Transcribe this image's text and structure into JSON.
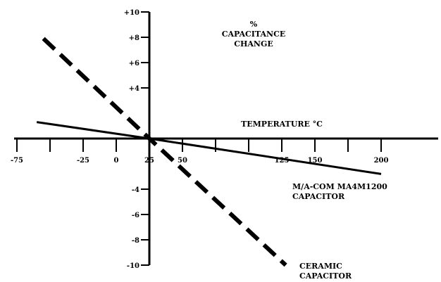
{
  "chart_data": {
    "type": "line",
    "xlabel": "TEMPERATURE °C",
    "ylabel_lines": [
      "%",
      "CAPACITANCE",
      "CHANGE"
    ],
    "xlim": [
      -75,
      225
    ],
    "ylim": [
      -10,
      10
    ],
    "x_ticks": [
      -75,
      -50,
      -25,
      0,
      25,
      50,
      75,
      100,
      125,
      150,
      175,
      200
    ],
    "x_tick_labels": [
      {
        "x": -75,
        "text": "-75"
      },
      {
        "x": -25,
        "text": "-25"
      },
      {
        "x": 0,
        "text": "0"
      },
      {
        "x": 25,
        "text": "25"
      },
      {
        "x": 50,
        "text": "50"
      },
      {
        "x": 125,
        "text": "125"
      },
      {
        "x": 150,
        "text": "150"
      },
      {
        "x": 200,
        "text": "200"
      }
    ],
    "y_ticks": [
      -10,
      -8,
      -6,
      -4,
      4,
      6,
      8,
      10
    ],
    "y_tick_labels": [
      {
        "y": 10,
        "text": "+10"
      },
      {
        "y": 8,
        "text": "+8"
      },
      {
        "y": 6,
        "text": "+6"
      },
      {
        "y": 4,
        "text": "+4"
      },
      {
        "y": -4,
        "text": "-4"
      },
      {
        "y": -6,
        "text": "-6"
      },
      {
        "y": -8,
        "text": "-8"
      },
      {
        "y": -10,
        "text": "-10"
      }
    ],
    "series": [
      {
        "name_lines": [
          "M/A-COM MA4M1200",
          "CAPACITOR"
        ],
        "style": "solid",
        "x": [
          -60,
          25,
          200
        ],
        "y": [
          1.3,
          0,
          -2.8
        ]
      },
      {
        "name_lines": [
          "CERAMIC",
          "CAPACITOR"
        ],
        "style": "dashed",
        "x": [
          -55,
          25,
          128
        ],
        "y": [
          7.9,
          0,
          -10
        ]
      }
    ],
    "grid": false
  }
}
